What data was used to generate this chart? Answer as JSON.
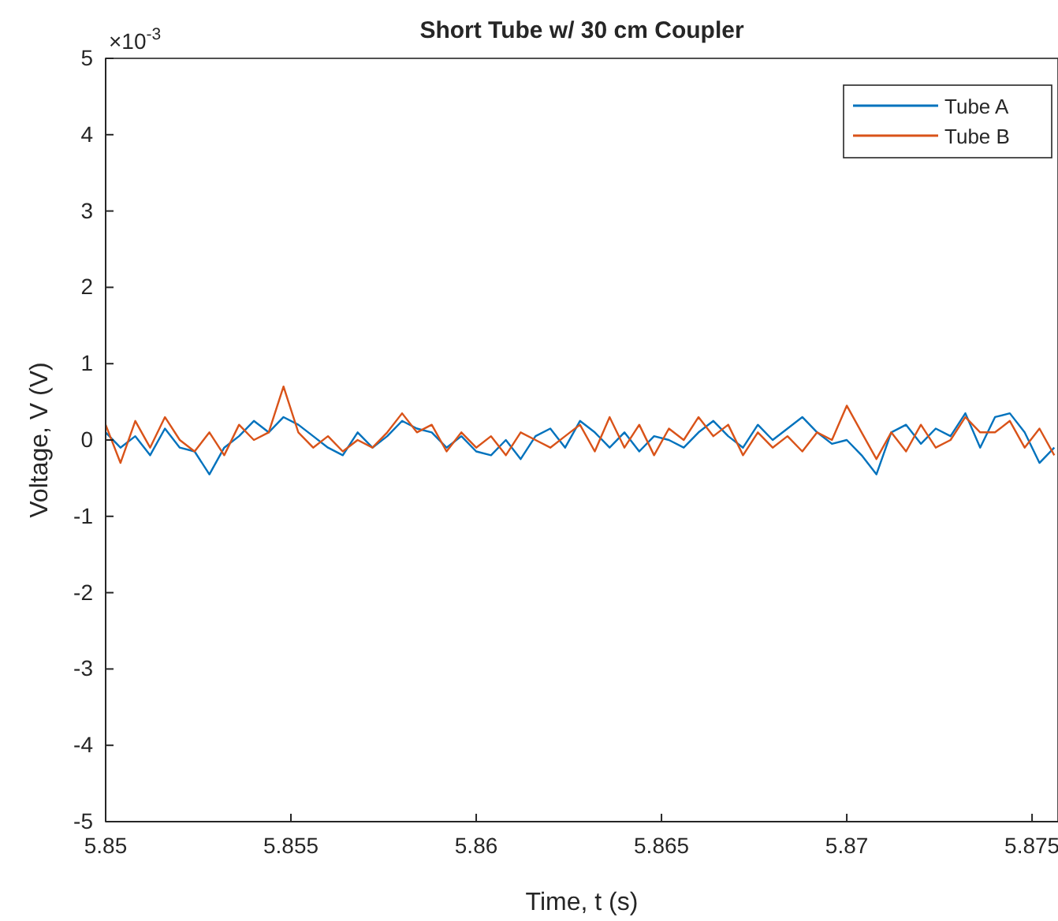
{
  "chart_data": {
    "type": "line",
    "title": "Short Tube w/ 30 cm Coupler",
    "xlabel": "Time, t (s)",
    "ylabel": "Voltage, V (V)",
    "annotations": [
      "×10$^{-3}$"
    ],
    "x": [
      5.85,
      5.8504,
      5.8508,
      5.8512,
      5.8516,
      5.852,
      5.8524,
      5.8528,
      5.8532,
      5.8536,
      5.854,
      5.8544,
      5.8548,
      5.8552,
      5.8556,
      5.856,
      5.8564,
      5.8568,
      5.8572,
      5.8576,
      5.858,
      5.8584,
      5.8588,
      5.8592,
      5.8596,
      5.86,
      5.8604,
      5.8608,
      5.8612,
      5.8616,
      5.862,
      5.8624,
      5.8628,
      5.8632,
      5.8636,
      5.864,
      5.8644,
      5.8648,
      5.8652,
      5.8656,
      5.866,
      5.8664,
      5.8668,
      5.8672,
      5.8676,
      5.868,
      5.8684,
      5.8688,
      5.8692,
      5.8696,
      5.87,
      5.8704,
      5.8708,
      5.8712,
      5.8716,
      5.872,
      5.8724,
      5.8728,
      5.8732,
      5.8736,
      5.874,
      5.8744,
      5.8748,
      5.8752,
      5.8756
    ],
    "series": [
      {
        "name": "Tube A",
        "color": "#0072bd",
        "values": [
          0.1,
          -0.1,
          0.05,
          -0.2,
          0.15,
          -0.1,
          -0.15,
          -0.45,
          -0.1,
          0.05,
          0.25,
          0.1,
          0.3,
          0.2,
          0.05,
          -0.1,
          -0.2,
          0.1,
          -0.1,
          0.05,
          0.25,
          0.15,
          0.1,
          -0.1,
          0.05,
          -0.15,
          -0.2,
          0.0,
          -0.25,
          0.05,
          0.15,
          -0.1,
          0.25,
          0.1,
          -0.1,
          0.1,
          -0.15,
          0.05,
          0.0,
          -0.1,
          0.1,
          0.25,
          0.05,
          -0.1,
          0.2,
          0.0,
          0.15,
          0.3,
          0.1,
          -0.05,
          0.0,
          -0.2,
          -0.45,
          0.1,
          0.2,
          -0.05,
          0.15,
          0.05,
          0.35,
          -0.1,
          0.3,
          0.35,
          0.1,
          -0.3,
          -0.1
        ]
      },
      {
        "name": "Tube B",
        "color": "#d95319",
        "values": [
          0.2,
          -0.3,
          0.25,
          -0.1,
          0.3,
          0.0,
          -0.15,
          0.1,
          -0.2,
          0.2,
          0.0,
          0.1,
          0.7,
          0.1,
          -0.1,
          0.05,
          -0.15,
          0.0,
          -0.1,
          0.1,
          0.35,
          0.1,
          0.2,
          -0.15,
          0.1,
          -0.1,
          0.05,
          -0.2,
          0.1,
          0.0,
          -0.1,
          0.05,
          0.2,
          -0.15,
          0.3,
          -0.1,
          0.2,
          -0.2,
          0.15,
          0.0,
          0.3,
          0.05,
          0.2,
          -0.2,
          0.1,
          -0.1,
          0.05,
          -0.15,
          0.1,
          0.0,
          0.45,
          0.1,
          -0.25,
          0.1,
          -0.15,
          0.2,
          -0.1,
          0.0,
          0.3,
          0.1,
          0.1,
          0.25,
          -0.1,
          0.15,
          -0.2
        ]
      }
    ],
    "xlim": [
      5.85,
      5.8757
    ],
    "xticks": [
      5.85,
      5.855,
      5.86,
      5.865,
      5.87,
      5.875
    ],
    "ylim": [
      -5,
      5
    ],
    "yticks": [
      -5,
      -4,
      -3,
      -2,
      -1,
      0,
      1,
      2,
      3,
      4,
      5
    ],
    "legend": "top right",
    "grid": false,
    "line_style": "solid",
    "marker": "none"
  }
}
